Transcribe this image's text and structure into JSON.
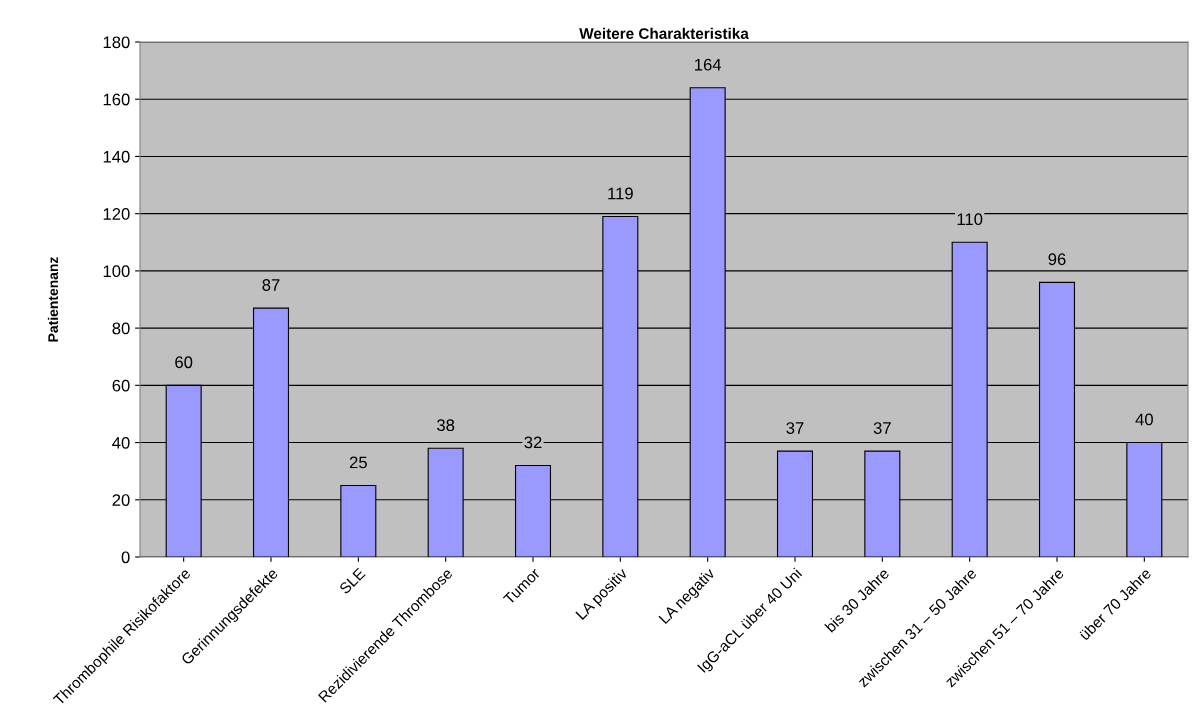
{
  "chart_data": {
    "type": "bar",
    "title": "Weitere Charakteristika",
    "ylabel": "Patientenanz",
    "categories": [
      "Thrombophile Risikofaktore",
      "Gerinnungsdefekte",
      "SLE",
      "Rezidivierende Thrombose",
      "Tumor",
      "LA positiv",
      "LA negativ",
      "IgG-aCL über 40 Uni",
      "bis 30 Jahre",
      "zwischen 31 – 50 Jahre",
      "zwischen 51 – 70 Jahre",
      "über 70 Jahre"
    ],
    "values": [
      60,
      87,
      25,
      38,
      32,
      119,
      164,
      37,
      37,
      110,
      96,
      40
    ],
    "color": "#9999ff",
    "ylim": [
      0,
      180
    ],
    "yticks": [
      0,
      20,
      40,
      60,
      80,
      100,
      120,
      140,
      160,
      180
    ],
    "grid": "y",
    "data_labels": true
  }
}
